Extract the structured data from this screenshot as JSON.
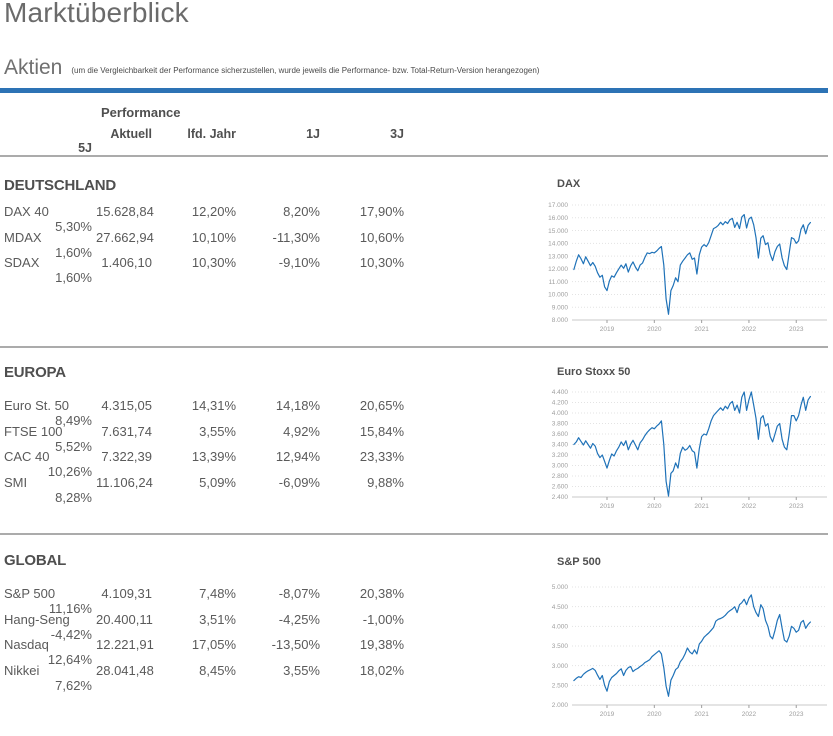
{
  "page": {
    "title": "Marktüberblick",
    "section_title": "Aktien",
    "section_note": "(um die Vergleichbarkeit der Performance sicherzustellen, wurde jeweils die Performance- bzw. Total-Return-Version herangezogen)"
  },
  "colors": {
    "accent_bar": "#2d73b5",
    "chart_line": "#1f72b8",
    "grid_line": "#e3e3e3",
    "axis_line": "#c9c9c9",
    "axis_text": "#9e9e9e"
  },
  "table": {
    "group_header": "Performance",
    "columns": [
      "Aktuell",
      "lfd. Jahr",
      "1J",
      "3J",
      "5J"
    ],
    "sections": [
      {
        "name": "DEUTSCHLAND",
        "rows": [
          {
            "label": "DAX 40",
            "values": [
              "15.628,84",
              "12,20%",
              "8,20%",
              "17,90%",
              "5,30%"
            ]
          },
          {
            "label": "MDAX",
            "values": [
              "27.662,94",
              "10,10%",
              "-11,30%",
              "10,60%",
              "1,60%"
            ]
          },
          {
            "label": "SDAX",
            "values": [
              "1.406,10",
              "10,30%",
              "-9,10%",
              "10,30%",
              "1,60%"
            ]
          }
        ]
      },
      {
        "name": "EUROPA",
        "rows": [
          {
            "label": "Euro St. 50",
            "values": [
              "4.315,05",
              "14,31%",
              "14,18%",
              "20,65%",
              "8,49%"
            ]
          },
          {
            "label": "FTSE 100",
            "values": [
              "7.631,74",
              "3,55%",
              "4,92%",
              "15,84%",
              "5,52%"
            ]
          },
          {
            "label": "CAC 40",
            "values": [
              "7.322,39",
              "13,39%",
              "12,94%",
              "23,33%",
              "10,26%"
            ]
          },
          {
            "label": "SMI",
            "values": [
              "11.106,24",
              "5,09%",
              "-6,09%",
              "9,88%",
              "8,28%"
            ]
          }
        ]
      },
      {
        "name": "GLOBAL",
        "rows": [
          {
            "label": "S&P 500",
            "values": [
              "4.109,31",
              "7,48%",
              "-8,07%",
              "20,38%",
              "11,16%"
            ]
          },
          {
            "label": "Hang-Seng",
            "values": [
              "20.400,11",
              "3,51%",
              "-4,25%",
              "-1,00%",
              "-4,42%"
            ]
          },
          {
            "label": "Nasdaq",
            "values": [
              "12.221,91",
              "17,05%",
              "-13,50%",
              "19,38%",
              "12,64%"
            ]
          },
          {
            "label": "Nikkei",
            "values": [
              "28.041,48",
              "8,45%",
              "3,55%",
              "18,02%",
              "7,62%"
            ]
          }
        ]
      }
    ]
  },
  "chart_data": [
    {
      "type": "line",
      "title": "DAX",
      "xlim": [
        2018.26,
        2023.65
      ],
      "ylim": [
        8000,
        17000
      ],
      "x_ticks": {
        "values": [
          2019,
          2020,
          2021,
          2022,
          2023
        ],
        "labels": [
          "2019",
          "2020",
          "2021",
          "2022",
          "2023"
        ]
      },
      "y_ticks": {
        "values": [
          17000,
          16000,
          15000,
          14000,
          13000,
          12000,
          11000,
          10000,
          9000,
          8000
        ],
        "labels": [
          "17.000",
          "16.000",
          "15.000",
          "14.000",
          "13.000",
          "12.000",
          "11.000",
          "10.000",
          "9.000",
          "8.000"
        ]
      },
      "x_start": 2018.3,
      "x_step": 0.05,
      "values": [
        11950,
        12600,
        13100,
        12800,
        12400,
        12950,
        12600,
        12250,
        12500,
        12200,
        11700,
        11350,
        11500,
        10600,
        10300,
        11050,
        11450,
        11350,
        11700,
        12000,
        12300,
        12050,
        12400,
        11750,
        12250,
        12550,
        12150,
        11850,
        12300,
        12450,
        12900,
        13250,
        13200,
        13300,
        13250,
        13400,
        13600,
        13750,
        12300,
        9650,
        8450,
        10300,
        10700,
        11300,
        11000,
        12300,
        12600,
        12850,
        13100,
        13250,
        12750,
        12850,
        11600,
        13100,
        13700,
        13900,
        13750,
        14050,
        14600,
        15150,
        15250,
        15400,
        15650,
        15450,
        15700,
        15550,
        15850,
        15950,
        15250,
        15650,
        15150,
        16050,
        16250,
        15200,
        15900,
        16050,
        15450,
        14450,
        12850,
        14400,
        14600,
        13900,
        14050,
        13150,
        12650,
        13350,
        13750,
        13950,
        12850,
        12250,
        11950,
        13250,
        14450,
        14350,
        14000,
        14200,
        15100,
        15450,
        14750,
        15400,
        15630
      ]
    },
    {
      "type": "line",
      "title": "Euro Stoxx 50",
      "xlim": [
        2018.26,
        2023.65
      ],
      "ylim": [
        2400,
        4400
      ],
      "x_ticks": {
        "values": [
          2019,
          2020,
          2021,
          2022,
          2023
        ],
        "labels": [
          "2019",
          "2020",
          "2021",
          "2022",
          "2023"
        ]
      },
      "y_ticks": {
        "values": [
          4400,
          4200,
          4000,
          3800,
          3600,
          3400,
          3200,
          3000,
          2800,
          2600,
          2400
        ],
        "labels": [
          "4.400",
          "4.200",
          "4.000",
          "3.800",
          "3.600",
          "3.400",
          "3.200",
          "3.000",
          "2.800",
          "2.600",
          "2.400"
        ]
      },
      "x_start": 2018.3,
      "x_step": 0.05,
      "values": [
        3400,
        3450,
        3530,
        3460,
        3390,
        3470,
        3400,
        3330,
        3420,
        3370,
        3230,
        3150,
        3200,
        3080,
        2950,
        3100,
        3220,
        3180,
        3280,
        3350,
        3450,
        3380,
        3470,
        3300,
        3410,
        3480,
        3390,
        3300,
        3430,
        3490,
        3570,
        3630,
        3680,
        3720,
        3700,
        3750,
        3790,
        3850,
        3400,
        2700,
        2420,
        2850,
        2900,
        3050,
        2950,
        3230,
        3350,
        3290,
        3320,
        3380,
        3280,
        3250,
        2950,
        3320,
        3550,
        3600,
        3580,
        3700,
        3850,
        3950,
        4000,
        4050,
        4100,
        4050,
        4130,
        4080,
        4180,
        4220,
        4050,
        4150,
        4000,
        4300,
        4400,
        4050,
        4250,
        4400,
        4150,
        3900,
        3500,
        3900,
        3950,
        3750,
        3800,
        3550,
        3450,
        3600,
        3750,
        3800,
        3500,
        3350,
        3300,
        3600,
        3950,
        3950,
        3850,
        3950,
        4150,
        4300,
        4050,
        4250,
        4315
      ]
    },
    {
      "type": "line",
      "title": "S&P 500",
      "xlim": [
        2018.26,
        2023.65
      ],
      "ylim": [
        2000,
        5000
      ],
      "x_ticks": {
        "values": [
          2019,
          2020,
          2021,
          2022,
          2023
        ],
        "labels": [
          "2019",
          "2020",
          "2021",
          "2022",
          "2023"
        ]
      },
      "y_ticks": {
        "values": [
          5000,
          4500,
          4000,
          3500,
          3000,
          2500,
          2000
        ],
        "labels": [
          "5.000",
          "4.500",
          "4.000",
          "3.500",
          "3.000",
          "2.500",
          "2.000"
        ]
      },
      "x_start": 2018.3,
      "x_step": 0.05,
      "values": [
        2620,
        2680,
        2720,
        2700,
        2780,
        2830,
        2870,
        2900,
        2930,
        2880,
        2760,
        2650,
        2750,
        2500,
        2350,
        2600,
        2700,
        2750,
        2800,
        2870,
        2920,
        2750,
        2880,
        2950,
        2980,
        2850,
        2900,
        2930,
        2980,
        3020,
        3080,
        3110,
        3150,
        3230,
        3280,
        3330,
        3380,
        3300,
        2950,
        2480,
        2220,
        2630,
        2750,
        2900,
        2950,
        3100,
        3180,
        3300,
        3450,
        3350,
        3300,
        3400,
        3300,
        3550,
        3620,
        3720,
        3780,
        3830,
        3900,
        3970,
        4130,
        4180,
        4200,
        4230,
        4280,
        4350,
        4400,
        4440,
        4500,
        4350,
        4550,
        4600,
        4690,
        4550,
        4710,
        4800,
        4500,
        4350,
        4250,
        4550,
        4450,
        4150,
        4000,
        3750,
        3680,
        3900,
        4150,
        4300,
        3950,
        3650,
        3600,
        3750,
        4000,
        3950,
        3850,
        3900,
        4100,
        4150,
        3950,
        4050,
        4110
      ]
    }
  ]
}
